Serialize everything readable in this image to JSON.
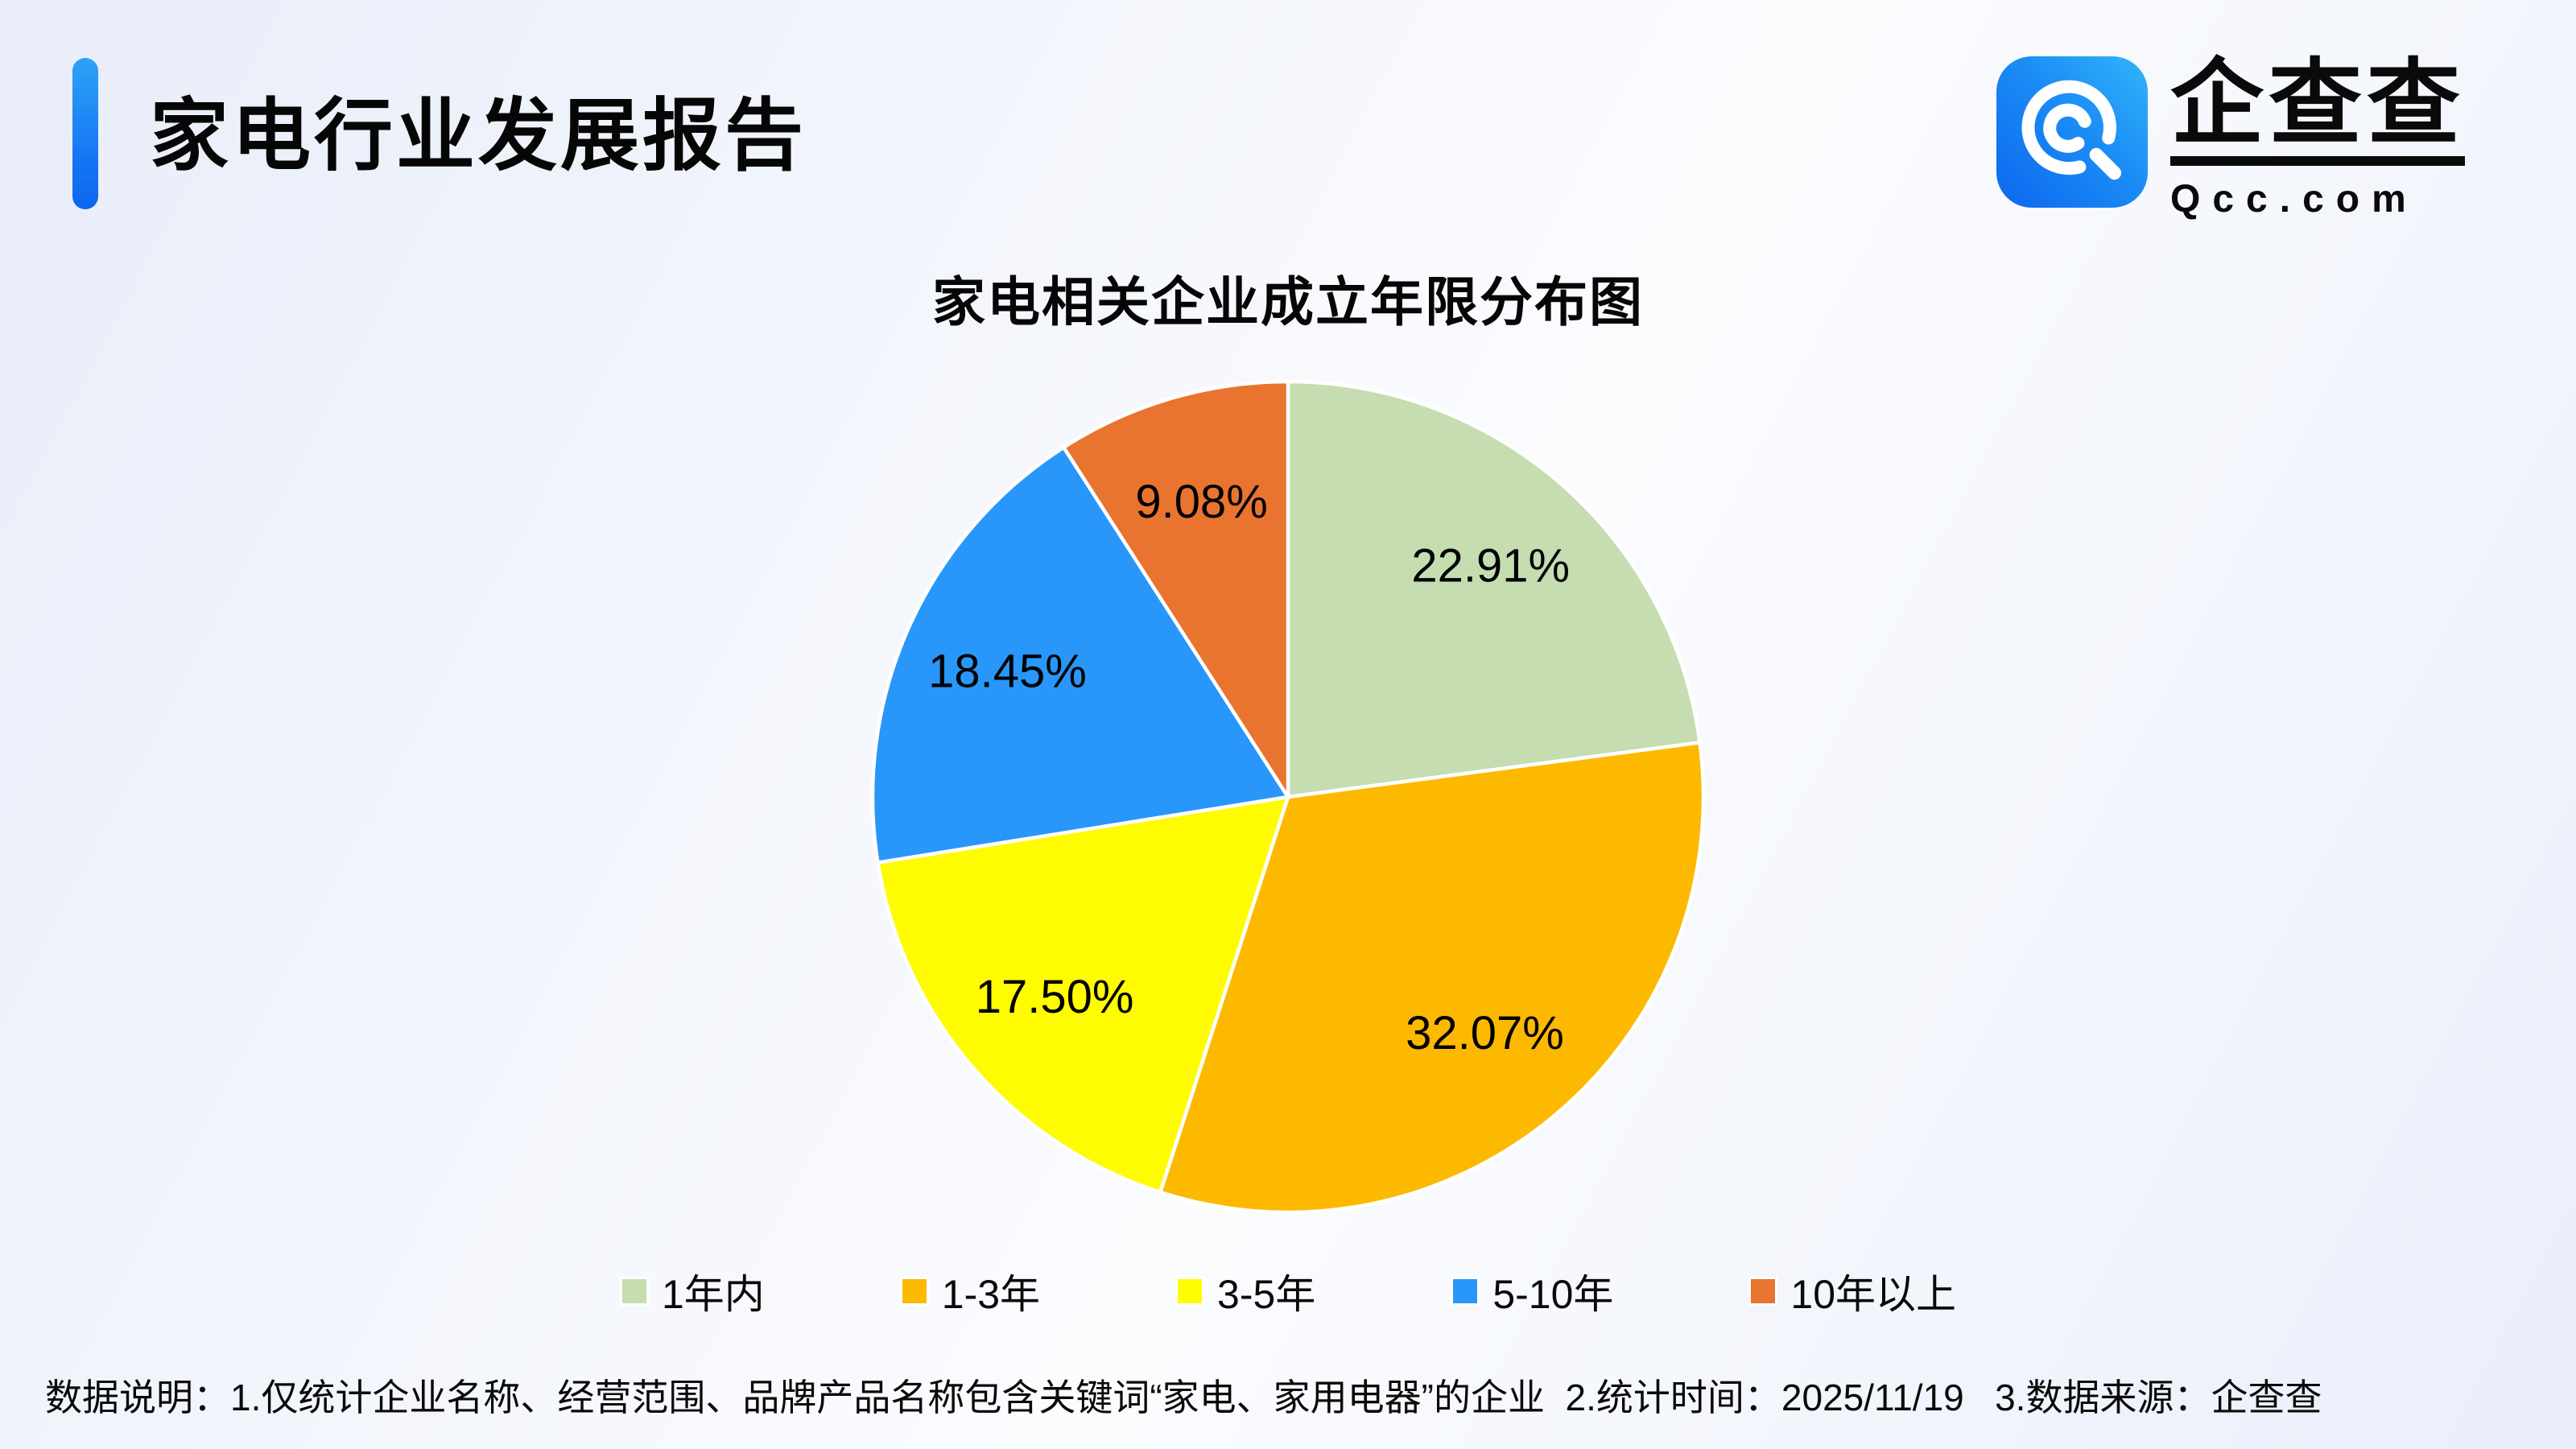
{
  "header": {
    "title": "家电行业发展报告",
    "logo": {
      "brand": "企查查",
      "domain": "Qcc.com"
    }
  },
  "chart_data": {
    "type": "pie",
    "title": "家电相关企业成立年限分布图",
    "categories": [
      "1年内",
      "1-3年",
      "3-5年",
      "5-10年",
      "10年以上"
    ],
    "values": [
      22.91,
      32.07,
      17.5,
      18.45,
      9.08
    ],
    "labels": [
      "22.91%",
      "32.07%",
      "17.50%",
      "18.45%",
      "9.08%"
    ],
    "colors": [
      "#c5ddb1",
      "#fcb900",
      "#fffb00",
      "#2897f9",
      "#e8742f"
    ],
    "start_angle_deg": 0,
    "direction": "clockwise",
    "label_position": "inside",
    "legend_position": "bottom",
    "slice_border_color": "#ffffff"
  },
  "footer": {
    "note": "数据说明：1.仅统计企业名称、经营范围、品牌产品名称包含关键词“家电、家用电器”的企业  2.统计时间：2025/11/19   3.数据来源：企查查"
  }
}
